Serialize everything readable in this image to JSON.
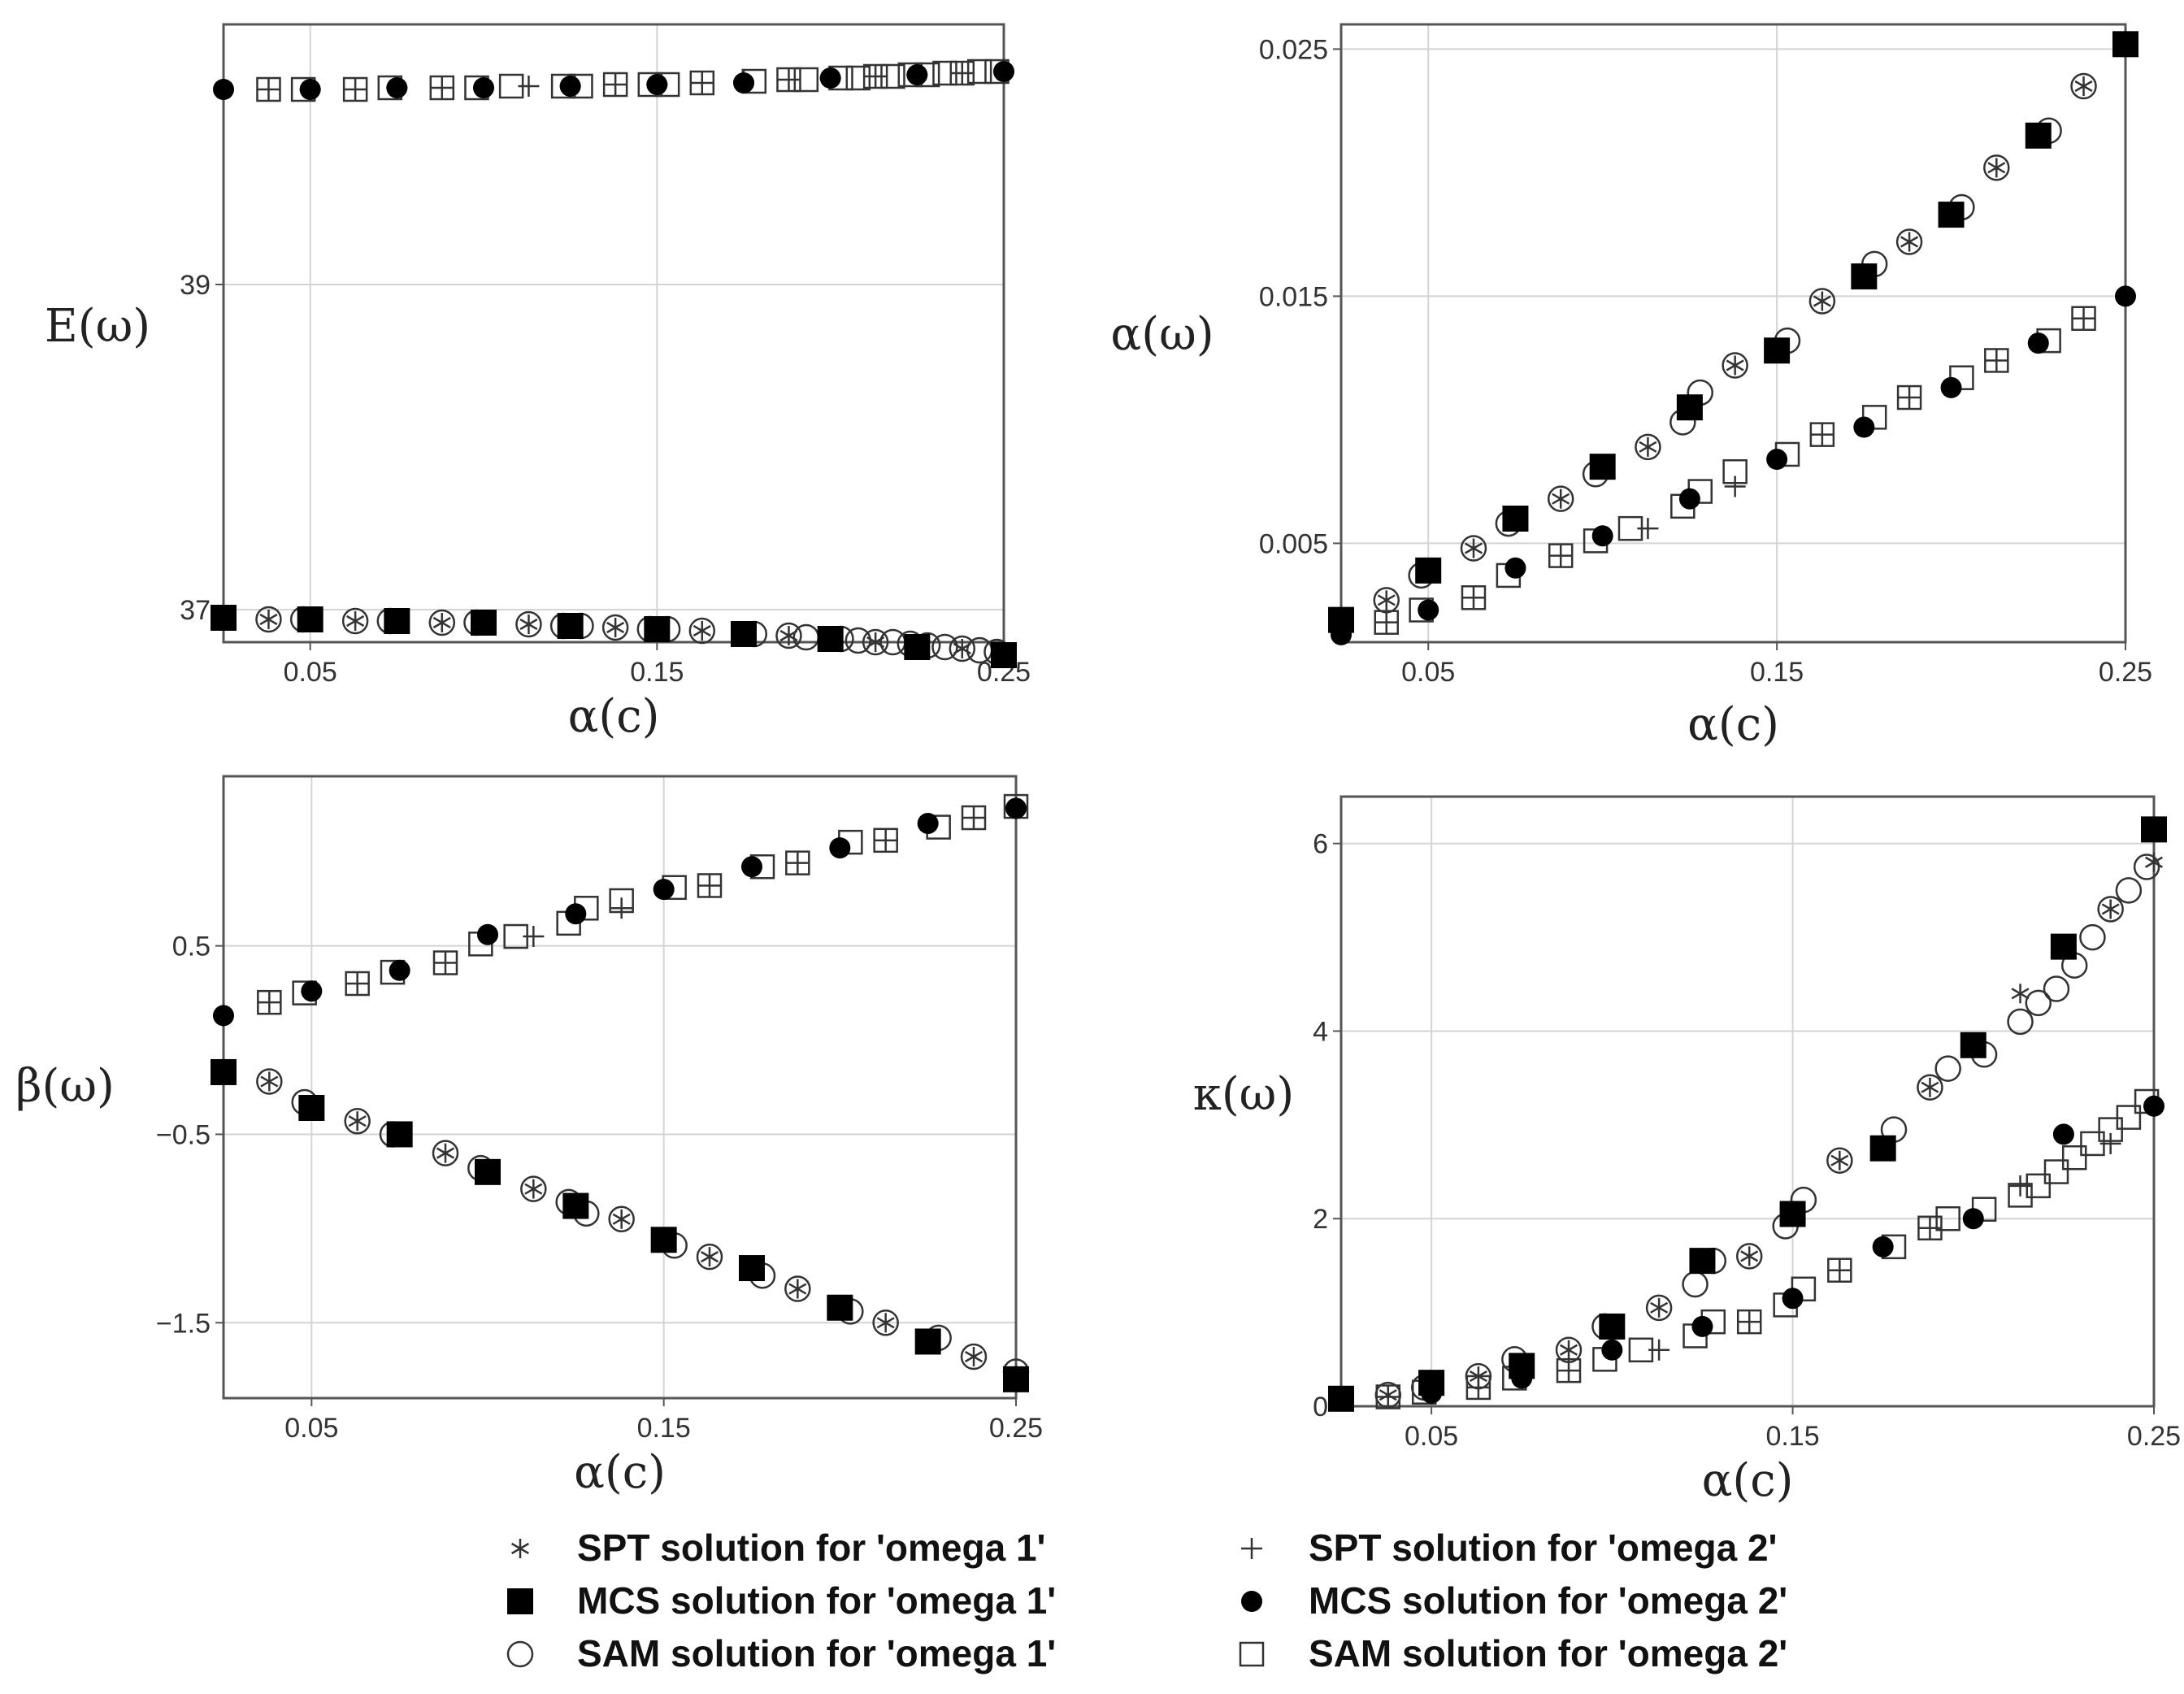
{
  "chart_data": [
    {
      "type": "scatter",
      "ylabel": "E(ω)",
      "xlabel": "α(c)",
      "xlim": [
        0.025,
        0.25
      ],
      "ylim": [
        36.8,
        40.6
      ],
      "xticks": [
        0.05,
        0.15,
        0.25
      ],
      "yticks": [
        37,
        39
      ],
      "xtick_labels": [
        "0.05",
        "0.15",
        "0.25"
      ],
      "ytick_labels": [
        "37",
        "39"
      ],
      "grid": true,
      "series": [
        {
          "name": "SPT solution for 'omega 1'",
          "marker": "star",
          "x": [
            0.038,
            0.05,
            0.063,
            0.075,
            0.088,
            0.1,
            0.113,
            0.125,
            0.138,
            0.15,
            0.163,
            0.175,
            0.188,
            0.2,
            0.213,
            0.225,
            0.238,
            0.25
          ],
          "y": [
            36.94,
            36.94,
            36.93,
            36.93,
            36.92,
            36.92,
            36.91,
            36.9,
            36.89,
            36.88,
            36.87,
            36.86,
            36.84,
            36.82,
            36.8,
            36.78,
            36.76,
            36.74
          ]
        },
        {
          "name": "MCS solution for 'omega 1'",
          "marker": "filled-square",
          "x": [
            0.025,
            0.05,
            0.075,
            0.1,
            0.125,
            0.15,
            0.175,
            0.2,
            0.225,
            0.25
          ],
          "y": [
            36.95,
            36.94,
            36.93,
            36.92,
            36.9,
            36.88,
            36.85,
            36.82,
            36.77,
            36.72
          ]
        },
        {
          "name": "SAM solution for 'omega 1'",
          "marker": "open-circle",
          "x": [
            0.038,
            0.048,
            0.063,
            0.073,
            0.088,
            0.098,
            0.113,
            0.123,
            0.128,
            0.138,
            0.148,
            0.153,
            0.163,
            0.178,
            0.188,
            0.193,
            0.203,
            0.208,
            0.213,
            0.218,
            0.223,
            0.228,
            0.233,
            0.238,
            0.243,
            0.248
          ],
          "y": [
            36.94,
            36.94,
            36.93,
            36.93,
            36.92,
            36.92,
            36.91,
            36.9,
            36.9,
            36.89,
            36.88,
            36.88,
            36.87,
            36.85,
            36.84,
            36.83,
            36.82,
            36.81,
            36.8,
            36.8,
            36.79,
            36.78,
            36.77,
            36.76,
            36.75,
            36.74
          ]
        },
        {
          "name": "SPT solution for 'omega 2'",
          "marker": "plus",
          "x": [
            0.038,
            0.05,
            0.063,
            0.075,
            0.088,
            0.1,
            0.113,
            0.125,
            0.138,
            0.15,
            0.163,
            0.175,
            0.188,
            0.2,
            0.213,
            0.225,
            0.238,
            0.25
          ],
          "y": [
            40.2,
            40.2,
            40.2,
            40.21,
            40.21,
            40.21,
            40.22,
            40.22,
            40.23,
            40.23,
            40.24,
            40.25,
            40.26,
            40.27,
            40.28,
            40.29,
            40.3,
            40.31
          ]
        },
        {
          "name": "MCS solution for 'omega 2'",
          "marker": "filled-circle",
          "x": [
            0.025,
            0.05,
            0.075,
            0.1,
            0.125,
            0.15,
            0.175,
            0.2,
            0.225,
            0.25
          ],
          "y": [
            40.2,
            40.2,
            40.21,
            40.21,
            40.22,
            40.23,
            40.24,
            40.27,
            40.29,
            40.31
          ]
        },
        {
          "name": "SAM solution for 'omega 2'",
          "marker": "open-square",
          "x": [
            0.038,
            0.048,
            0.063,
            0.073,
            0.088,
            0.098,
            0.108,
            0.123,
            0.128,
            0.138,
            0.148,
            0.153,
            0.163,
            0.178,
            0.188,
            0.193,
            0.203,
            0.208,
            0.213,
            0.218,
            0.223,
            0.228,
            0.233,
            0.238,
            0.243,
            0.248
          ],
          "y": [
            40.2,
            40.2,
            40.2,
            40.21,
            40.21,
            40.21,
            40.22,
            40.22,
            40.22,
            40.23,
            40.23,
            40.23,
            40.24,
            40.25,
            40.26,
            40.26,
            40.27,
            40.27,
            40.28,
            40.28,
            40.29,
            40.29,
            40.3,
            40.3,
            40.31,
            40.31
          ]
        }
      ]
    },
    {
      "type": "scatter",
      "ylabel": "α(ω)",
      "xlabel": "α(c)",
      "xlim": [
        0.025,
        0.25
      ],
      "ylim": [
        0.001,
        0.026
      ],
      "xticks": [
        0.05,
        0.15,
        0.25
      ],
      "yticks": [
        0.005,
        0.015,
        0.025
      ],
      "xtick_labels": [
        "0.05",
        "0.15",
        "0.25"
      ],
      "ytick_labels": [
        "0.005",
        "0.015",
        "0.025"
      ],
      "grid": true,
      "series": [
        {
          "name": "SPT solution for 'omega 1'",
          "marker": "star",
          "x": [
            0.038,
            0.063,
            0.088,
            0.113,
            0.138,
            0.163,
            0.188,
            0.213,
            0.238,
            0.25
          ],
          "y": [
            0.0027,
            0.0048,
            0.0068,
            0.0089,
            0.0122,
            0.0148,
            0.0172,
            0.0202,
            0.0235,
            0.0252
          ]
        },
        {
          "name": "MCS solution for 'omega 1'",
          "marker": "filled-square",
          "x": [
            0.025,
            0.05,
            0.075,
            0.1,
            0.125,
            0.15,
            0.175,
            0.2,
            0.225,
            0.25
          ],
          "y": [
            0.0019,
            0.0039,
            0.006,
            0.0081,
            0.0105,
            0.0128,
            0.0158,
            0.0183,
            0.0215,
            0.0252
          ]
        },
        {
          "name": "SAM solution for 'omega 1'",
          "marker": "open-circle",
          "x": [
            0.038,
            0.048,
            0.063,
            0.073,
            0.088,
            0.098,
            0.113,
            0.123,
            0.128,
            0.138,
            0.153,
            0.163,
            0.178,
            0.188,
            0.203,
            0.213,
            0.228,
            0.238
          ],
          "y": [
            0.0027,
            0.0037,
            0.0048,
            0.0058,
            0.0068,
            0.0078,
            0.0089,
            0.0099,
            0.0111,
            0.0122,
            0.0132,
            0.0148,
            0.0163,
            0.0172,
            0.0186,
            0.0202,
            0.0217,
            0.0235
          ]
        },
        {
          "name": "SPT solution for 'omega 2'",
          "marker": "plus",
          "x": [
            0.038,
            0.063,
            0.088,
            0.113,
            0.138,
            0.163,
            0.188,
            0.213,
            0.238
          ],
          "y": [
            0.0018,
            0.0028,
            0.0045,
            0.0056,
            0.0073,
            0.0094,
            0.0109,
            0.0124,
            0.0141
          ]
        },
        {
          "name": "MCS solution for 'omega 2'",
          "marker": "filled-circle",
          "x": [
            0.025,
            0.05,
            0.075,
            0.1,
            0.125,
            0.15,
            0.175,
            0.2,
            0.225,
            0.25
          ],
          "y": [
            0.0013,
            0.0023,
            0.004,
            0.0053,
            0.0068,
            0.0084,
            0.0097,
            0.0113,
            0.0131,
            0.015
          ]
        },
        {
          "name": "SAM solution for 'omega 2'",
          "marker": "open-square",
          "x": [
            0.038,
            0.048,
            0.063,
            0.073,
            0.088,
            0.098,
            0.108,
            0.123,
            0.128,
            0.138,
            0.153,
            0.163,
            0.178,
            0.188,
            0.203,
            0.213,
            0.228,
            0.238
          ],
          "y": [
            0.0018,
            0.0023,
            0.0028,
            0.0037,
            0.0045,
            0.0051,
            0.0056,
            0.0065,
            0.0071,
            0.0079,
            0.0086,
            0.0094,
            0.0101,
            0.0109,
            0.0117,
            0.0124,
            0.0132,
            0.0141
          ]
        }
      ]
    },
    {
      "type": "scatter",
      "ylabel": "β(ω)",
      "xlabel": "α(c)",
      "xlim": [
        0.025,
        0.25
      ],
      "ylim": [
        -1.9,
        1.4
      ],
      "xticks": [
        0.05,
        0.15,
        0.25
      ],
      "yticks": [
        0.5,
        -0.5,
        -1.5
      ],
      "xtick_labels": [
        "0.05",
        "0.15",
        "0.25"
      ],
      "ytick_labels": [
        "0.5",
        "−0.5",
        "−1.5"
      ],
      "grid": true,
      "series": [
        {
          "name": "SPT solution for 'omega 1'",
          "marker": "star",
          "x": [
            0.038,
            0.063,
            0.088,
            0.113,
            0.138,
            0.163,
            0.188,
            0.213,
            0.238,
            0.25
          ],
          "y": [
            -0.22,
            -0.43,
            -0.6,
            -0.79,
            -0.95,
            -1.15,
            -1.32,
            -1.5,
            -1.68,
            -1.78
          ]
        },
        {
          "name": "MCS solution for 'omega 1'",
          "marker": "filled-square",
          "x": [
            0.025,
            0.05,
            0.075,
            0.1,
            0.125,
            0.15,
            0.175,
            0.2,
            0.225,
            0.25
          ],
          "y": [
            -0.17,
            -0.36,
            -0.5,
            -0.7,
            -0.88,
            -1.06,
            -1.21,
            -1.42,
            -1.6,
            -1.8
          ]
        },
        {
          "name": "SAM solution for 'omega 1'",
          "marker": "open-circle",
          "x": [
            0.038,
            0.048,
            0.063,
            0.073,
            0.088,
            0.098,
            0.113,
            0.123,
            0.128,
            0.138,
            0.153,
            0.163,
            0.178,
            0.188,
            0.203,
            0.213,
            0.228,
            0.238,
            0.25
          ],
          "y": [
            -0.22,
            -0.33,
            -0.43,
            -0.5,
            -0.6,
            -0.68,
            -0.79,
            -0.86,
            -0.92,
            -0.95,
            -1.09,
            -1.15,
            -1.25,
            -1.32,
            -1.44,
            -1.5,
            -1.58,
            -1.68,
            -1.76
          ]
        },
        {
          "name": "SPT solution for 'omega 2'",
          "marker": "plus",
          "x": [
            0.038,
            0.063,
            0.088,
            0.113,
            0.138,
            0.163,
            0.188,
            0.213,
            0.238
          ],
          "y": [
            0.2,
            0.3,
            0.41,
            0.55,
            0.7,
            0.82,
            0.94,
            1.06,
            1.18
          ]
        },
        {
          "name": "MCS solution for 'omega 2'",
          "marker": "filled-circle",
          "x": [
            0.025,
            0.05,
            0.075,
            0.1,
            0.125,
            0.15,
            0.175,
            0.2,
            0.225,
            0.25
          ],
          "y": [
            0.13,
            0.26,
            0.37,
            0.56,
            0.67,
            0.8,
            0.92,
            1.02,
            1.15,
            1.23
          ]
        },
        {
          "name": "SAM solution for 'omega 2'",
          "marker": "open-square",
          "x": [
            0.038,
            0.048,
            0.063,
            0.073,
            0.088,
            0.098,
            0.108,
            0.123,
            0.128,
            0.138,
            0.153,
            0.163,
            0.178,
            0.188,
            0.203,
            0.213,
            0.228,
            0.238,
            0.25
          ],
          "y": [
            0.2,
            0.25,
            0.3,
            0.36,
            0.41,
            0.51,
            0.55,
            0.62,
            0.7,
            0.74,
            0.81,
            0.82,
            0.92,
            0.94,
            1.05,
            1.06,
            1.13,
            1.18,
            1.24
          ]
        }
      ]
    },
    {
      "type": "scatter",
      "ylabel": "κ(ω)",
      "xlabel": "α(c)",
      "xlim": [
        0.025,
        0.25
      ],
      "ylim": [
        0,
        6.5
      ],
      "xticks": [
        0.05,
        0.15,
        0.25
      ],
      "yticks": [
        0,
        2,
        4,
        6
      ],
      "xtick_labels": [
        "0.05",
        "0.15",
        "0.25"
      ],
      "ytick_labels": [
        "0",
        "2",
        "4",
        "6"
      ],
      "grid": true,
      "series": [
        {
          "name": "SPT solution for 'omega 1'",
          "marker": "star",
          "x": [
            0.038,
            0.063,
            0.088,
            0.113,
            0.138,
            0.163,
            0.188,
            0.213,
            0.238,
            0.25
          ],
          "y": [
            0.12,
            0.32,
            0.6,
            1.05,
            1.6,
            2.62,
            3.4,
            4.4,
            5.3,
            5.8
          ]
        },
        {
          "name": "MCS solution for 'omega 1'",
          "marker": "filled-square",
          "x": [
            0.025,
            0.05,
            0.075,
            0.1,
            0.125,
            0.15,
            0.175,
            0.2,
            0.225,
            0.25
          ],
          "y": [
            0.08,
            0.25,
            0.43,
            0.85,
            1.55,
            2.05,
            2.75,
            3.85,
            4.9,
            6.15
          ]
        },
        {
          "name": "SAM solution for 'omega 1'",
          "marker": "open-circle",
          "x": [
            0.038,
            0.048,
            0.063,
            0.073,
            0.088,
            0.098,
            0.113,
            0.123,
            0.128,
            0.138,
            0.148,
            0.153,
            0.163,
            0.178,
            0.188,
            0.193,
            0.203,
            0.213,
            0.218,
            0.223,
            0.228,
            0.233,
            0.238,
            0.243,
            0.248
          ],
          "y": [
            0.12,
            0.2,
            0.32,
            0.5,
            0.6,
            0.85,
            1.05,
            1.3,
            1.55,
            1.6,
            1.92,
            2.2,
            2.62,
            2.95,
            3.4,
            3.6,
            3.75,
            4.1,
            4.3,
            4.45,
            4.7,
            5.0,
            5.3,
            5.5,
            5.75
          ]
        },
        {
          "name": "SPT solution for 'omega 2'",
          "marker": "plus",
          "x": [
            0.038,
            0.063,
            0.088,
            0.113,
            0.138,
            0.163,
            0.188,
            0.213,
            0.238,
            0.25
          ],
          "y": [
            0.1,
            0.2,
            0.38,
            0.6,
            0.9,
            1.45,
            1.9,
            2.35,
            2.8,
            3.2
          ]
        },
        {
          "name": "MCS solution for 'omega 2'",
          "marker": "filled-circle",
          "x": [
            0.025,
            0.05,
            0.075,
            0.1,
            0.125,
            0.15,
            0.175,
            0.2,
            0.225,
            0.25
          ],
          "y": [
            0.06,
            0.14,
            0.3,
            0.6,
            0.85,
            1.15,
            1.7,
            2.0,
            2.9,
            3.2
          ]
        },
        {
          "name": "SAM solution for 'omega 2'",
          "marker": "open-square",
          "x": [
            0.038,
            0.048,
            0.063,
            0.073,
            0.088,
            0.098,
            0.108,
            0.123,
            0.128,
            0.138,
            0.148,
            0.153,
            0.163,
            0.178,
            0.188,
            0.193,
            0.203,
            0.213,
            0.218,
            0.223,
            0.228,
            0.233,
            0.238,
            0.243,
            0.248
          ],
          "y": [
            0.1,
            0.15,
            0.2,
            0.3,
            0.38,
            0.5,
            0.6,
            0.75,
            0.9,
            0.9,
            1.08,
            1.25,
            1.45,
            1.7,
            1.9,
            2.0,
            2.1,
            2.25,
            2.35,
            2.5,
            2.65,
            2.8,
            2.95,
            3.08,
            3.25
          ]
        }
      ]
    }
  ],
  "legend": {
    "entries": [
      {
        "label": "SPT solution for 'omega 1'",
        "marker": "star"
      },
      {
        "label": "SPT solution for 'omega 2'",
        "marker": "plus"
      },
      {
        "label": "MCS solution for 'omega 1'",
        "marker": "filled-square"
      },
      {
        "label": "MCS solution for 'omega 2'",
        "marker": "filled-circle"
      },
      {
        "label": "SAM solution for 'omega 1'",
        "marker": "open-circle"
      },
      {
        "label": "SAM solution for 'omega 2'",
        "marker": "open-square"
      }
    ]
  }
}
